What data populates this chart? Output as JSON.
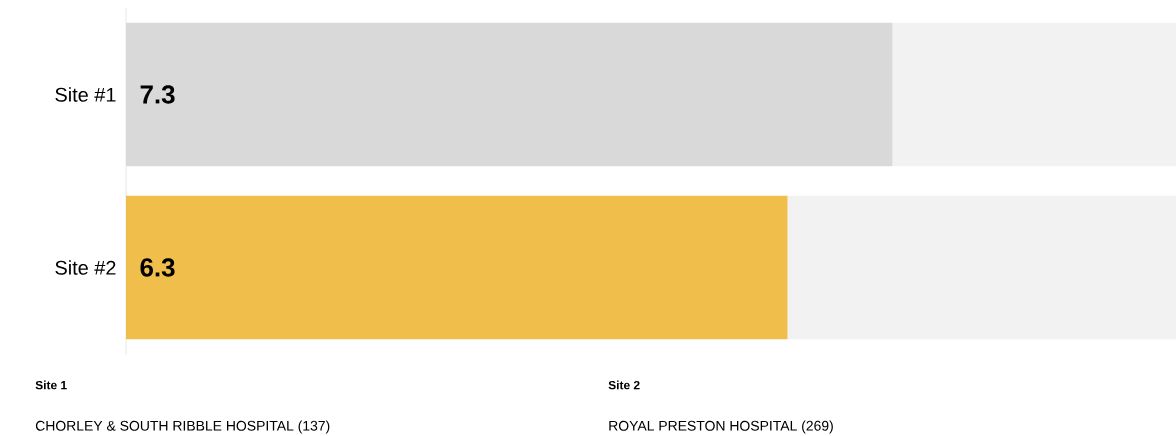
{
  "chart_data": {
    "type": "bar",
    "orientation": "horizontal",
    "stacked": true,
    "categories": [
      "Site #1",
      "Site #2"
    ],
    "series": [
      {
        "colors": [
          "#d9d9d9",
          "#f0be4a"
        ],
        "values": [
          7.3,
          6.3
        ],
        "value_labels": [
          "7.3",
          "6.3"
        ]
      },
      {
        "color": "#f2f2f2",
        "values": [
          2.7,
          3.7
        ]
      }
    ],
    "annotations": [
      "Site 1",
      "Site 2",
      "CHORLEY & SOUTH RIBBLE HOSPITAL (137)",
      "ROYAL PRESTON HOSPITAL (269)"
    ]
  }
}
